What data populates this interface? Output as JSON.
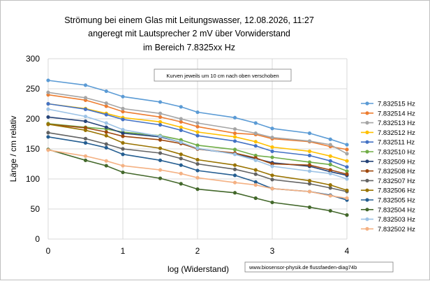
{
  "chart_data": {
    "type": "line",
    "title": [
      "Strömung bei einem Glas mit  Leitungswasser, 12.08.2026, 11:27",
      "angeregt mit Lautsprecher 2 mV über Vorwiderstand",
      "im Bereich 7.8325xx Hz"
    ],
    "annotation": "Kurven jeweils um 10 cm nach oben verschoben",
    "watermark": "www.biosensor-physik.de  flussfaeden-diag74b",
    "xlabel": "log (Widerstand)",
    "ylabel": "Länge / cm relativ",
    "xlim": [
      0,
      4
    ],
    "ylim": [
      0,
      300
    ],
    "xticks": [
      "0",
      "1",
      "2",
      "3",
      "4"
    ],
    "yticks": [
      "0",
      "50",
      "100",
      "150",
      "200",
      "250",
      "300"
    ],
    "grid": true,
    "legend_position": "right",
    "x": [
      0,
      0.5,
      0.778,
      1,
      1.5,
      1.778,
      2,
      2.5,
      2.778,
      3,
      3.5,
      3.778,
      4
    ],
    "series": [
      {
        "name": "7.832515 Hz",
        "color": "#5b9bd5",
        "values": [
          264,
          256,
          246,
          237,
          228,
          220,
          211,
          202,
          193,
          184,
          176,
          166,
          157
        ]
      },
      {
        "name": "7.832514 Hz",
        "color": "#ed7d31",
        "values": [
          240,
          231,
          221,
          212,
          203,
          195,
          187,
          176,
          174,
          167,
          162,
          154,
          149
        ]
      },
      {
        "name": "7.832513 Hz",
        "color": "#a5a5a5",
        "values": [
          244,
          235,
          226,
          217,
          209,
          200,
          193,
          183,
          176,
          169,
          163,
          157,
          142
        ]
      },
      {
        "name": "7.832512 Hz",
        "color": "#ffc000",
        "values": [
          225,
          217,
          209,
          202,
          195,
          186,
          178,
          170,
          162,
          153,
          146,
          138,
          130
        ]
      },
      {
        "name": "7.832511 Hz",
        "color": "#4472c4",
        "values": [
          225,
          216,
          207,
          199,
          190,
          181,
          172,
          163,
          155,
          146,
          139,
          130,
          120
        ]
      },
      {
        "name": "7.832510 Hz",
        "color": "#70ad47",
        "values": [
          192,
          186,
          183,
          178,
          172,
          165,
          156,
          149,
          139,
          136,
          128,
          124,
          113
        ]
      },
      {
        "name": "7.832509 Hz",
        "color": "#264478",
        "values": [
          203,
          196,
          186,
          176,
          170,
          161,
          150,
          142,
          134,
          127,
          121,
          112,
          106
        ]
      },
      {
        "name": "7.832508 Hz",
        "color": "#9e480e",
        "values": [
          191,
          185,
          178,
          171,
          165,
          159,
          150,
          143,
          135,
          125,
          123,
          115,
          108
        ]
      },
      {
        "name": "7.832507 Hz",
        "color": "#636363",
        "values": [
          177,
          167,
          158,
          150,
          143,
          134,
          125,
          116,
          108,
          99,
          92,
          85,
          79
        ]
      },
      {
        "name": "7.832506 Hz",
        "color": "#997300",
        "values": [
          191,
          181,
          172,
          160,
          151,
          141,
          132,
          123,
          115,
          106,
          97,
          90,
          81
        ]
      },
      {
        "name": "7.832505 Hz",
        "color": "#255e91",
        "values": [
          170,
          160,
          152,
          141,
          131,
          123,
          114,
          106,
          95,
          84,
          79,
          73,
          65
        ]
      },
      {
        "name": "7.832504 Hz",
        "color": "#43682b",
        "values": [
          149,
          131,
          122,
          111,
          101,
          92,
          83,
          77,
          68,
          61,
          53,
          47,
          40
        ]
      },
      {
        "name": "7.832503 Hz",
        "color": "#9dc3e6",
        "values": [
          216,
          204,
          193,
          182,
          171,
          161,
          151,
          141,
          131,
          121,
          113,
          109,
          100
        ]
      },
      {
        "name": "7.832502 Hz",
        "color": "#f4b183",
        "values": [
          148,
          138,
          130,
          122,
          115,
          109,
          102,
          94,
          90,
          84,
          79,
          72,
          68
        ]
      }
    ]
  }
}
